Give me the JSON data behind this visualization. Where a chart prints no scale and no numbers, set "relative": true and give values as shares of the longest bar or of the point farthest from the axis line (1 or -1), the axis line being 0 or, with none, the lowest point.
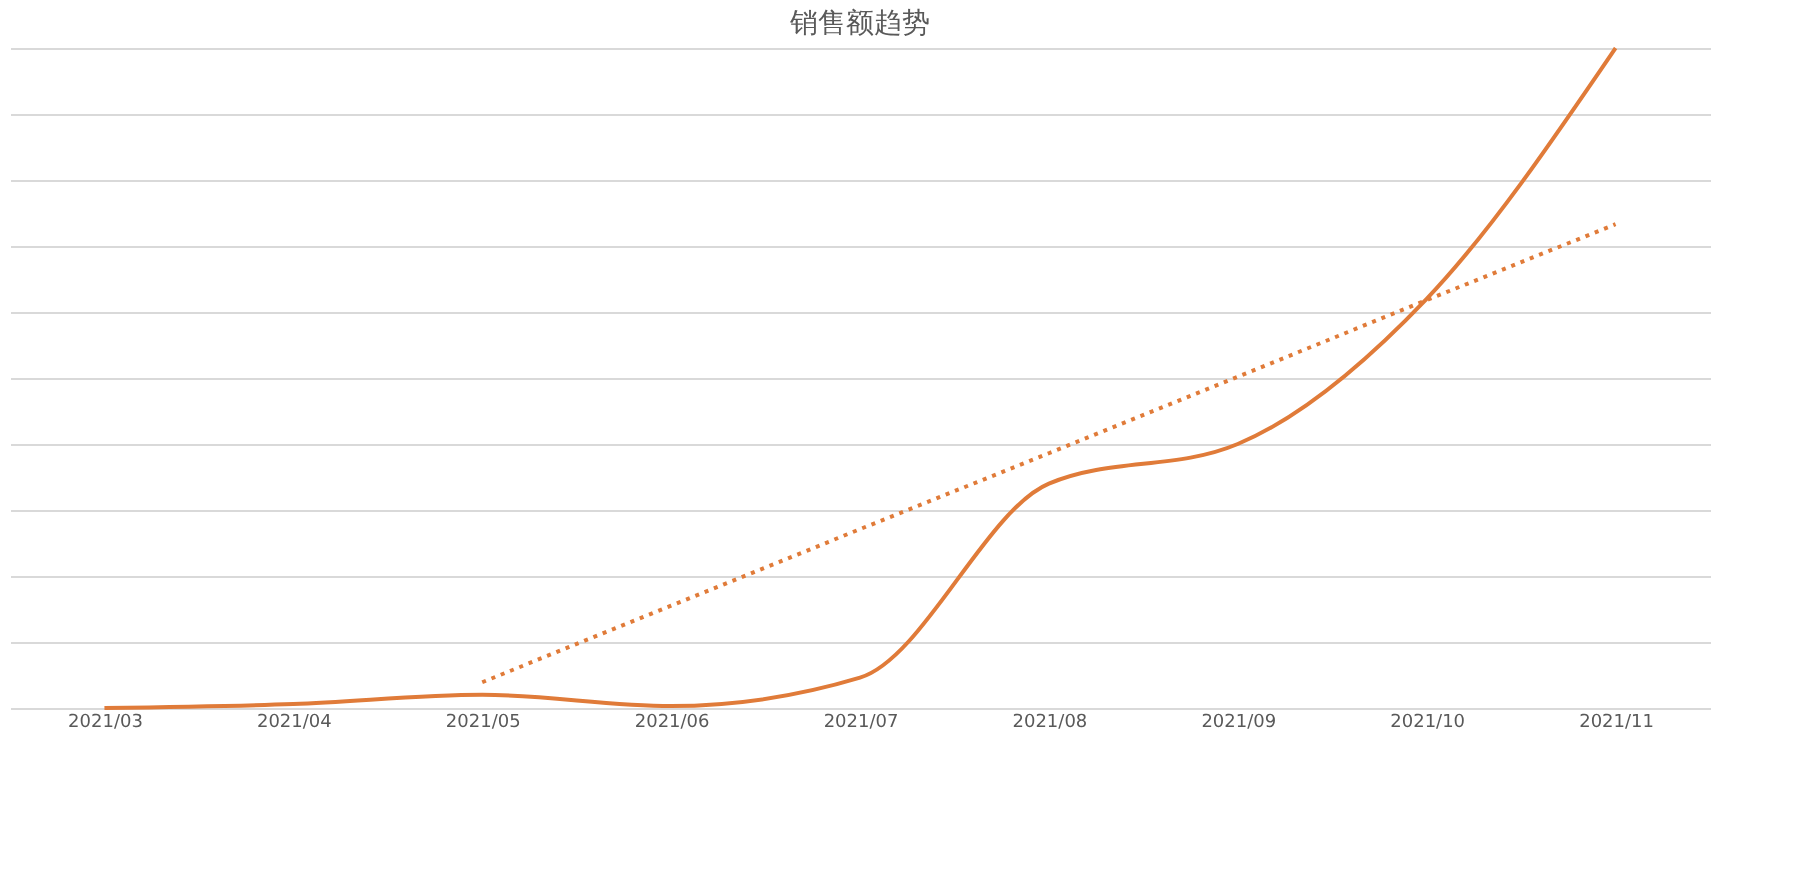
{
  "chart_data": {
    "type": "line",
    "title": "销售额趋势",
    "relative": true,
    "grid": "y",
    "marker": "none",
    "categories": [
      "2021/03",
      "2021/04",
      "2021/05",
      "2021/06",
      "2021/07",
      "2021/08",
      "2021/09",
      "2021/10",
      "2021/11"
    ],
    "series": [
      {
        "color": "#e07b39",
        "line_style": "solid",
        "values": [
          0,
          0.006,
          0.02,
          0.003,
          0.046,
          0.34,
          0.4,
          0.62,
          1
        ]
      },
      {
        "type": "line",
        "color": "#e07b39",
        "line_style": "dotted",
        "values": [
          null,
          null,
          0.039,
          0.155,
          0.271,
          0.386,
          0.502,
          0.618,
          0.733
        ]
      }
    ]
  }
}
